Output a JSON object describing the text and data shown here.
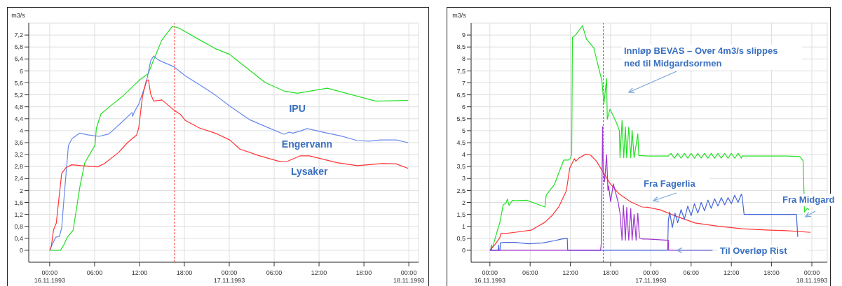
{
  "chart_data": [
    {
      "type": "line",
      "ylabel": "m3/s",
      "xlim": [
        "1993-11-15T21:12",
        "1993-11-18T01:18"
      ],
      "ylim": [
        -0.4,
        7.6
      ],
      "grid": true,
      "marker": "none",
      "xticks": [
        {
          "value": "1993-11-16T00:00",
          "label": "00:00\n16.11.1993"
        },
        {
          "value": "1993-11-16T06:00",
          "label": "06:00"
        },
        {
          "value": "1993-11-16T12:00",
          "label": "12:00"
        },
        {
          "value": "1993-11-16T18:00",
          "label": "18:00"
        },
        {
          "value": "1993-11-17T00:00",
          "label": "00:00\n17.11.1993"
        },
        {
          "value": "1993-11-17T06:00",
          "label": "06:00"
        },
        {
          "value": "1993-11-17T12:00",
          "label": "12:00"
        },
        {
          "value": "1993-11-17T18:00",
          "label": "18:00"
        },
        {
          "value": "1993-11-18T00:00",
          "label": "00:00\n18.11.1993"
        }
      ],
      "yticks": [
        0,
        {
          "value": 0.4,
          "label": "0,4"
        },
        {
          "value": 0.8,
          "label": "0,8"
        },
        {
          "value": 1.2,
          "label": "1,2"
        },
        {
          "value": 1.6,
          "label": "1,6"
        },
        2,
        {
          "value": 2.4,
          "label": "2,4"
        },
        {
          "value": 2.8,
          "label": "2,8"
        },
        {
          "value": 3.2,
          "label": "3,2"
        },
        {
          "value": 3.6,
          "label": "3,6"
        },
        4,
        {
          "value": 4.4,
          "label": "4,4"
        },
        {
          "value": 4.8,
          "label": "4,8"
        },
        {
          "value": 5.2,
          "label": "5,2"
        },
        {
          "value": 5.6,
          "label": "5,6"
        },
        6,
        {
          "value": 6.4,
          "label": "6,4"
        },
        {
          "value": 6.8,
          "label": "6,8"
        },
        {
          "value": 7.2,
          "label": "7,2"
        }
      ],
      "ref_lines": [
        {
          "axis": "x",
          "value": "1993-11-16T16:42",
          "color": "#ff3333",
          "line_style": "dotted"
        }
      ],
      "series": [
        {
          "name": "IPU",
          "color": "#22e022",
          "x": [
            "1993-11-16T00:00",
            "1993-11-16T01:27",
            "1993-11-16T01:54",
            "1993-11-16T02:22",
            "1993-11-16T03:08",
            "1993-11-16T04:04",
            "1993-11-16T04:41",
            "1993-11-16T06:04",
            "1993-11-16T06:14",
            "1993-11-16T06:51",
            "1993-11-16T07:56",
            "1993-11-16T09:47",
            "1993-11-16T11:56",
            "1993-11-16T13:10",
            "1993-11-16T13:54",
            "1993-11-16T14:59",
            "1993-11-16T16:24",
            "1993-11-16T17:18",
            "1993-11-16T19:36",
            "1993-11-16T22:06",
            "1993-11-17T00:04",
            "1993-11-17T00:48",
            "1993-11-17T04:48",
            "1993-11-17T07:18",
            "1993-11-17T09:06",
            "1993-11-17T13:06",
            "1993-11-17T18:06",
            "1993-11-17T19:36",
            "1993-11-17T23:54"
          ],
          "values": [
            0,
            0,
            0.19,
            0.44,
            0.67,
            2.17,
            2.92,
            3.52,
            4.08,
            4.56,
            4.79,
            5.16,
            5.68,
            5.91,
            6.37,
            7.03,
            7.49,
            7.43,
            7.1,
            6.75,
            6.55,
            6.4,
            5.61,
            5.33,
            5.25,
            5.42,
            5.09,
            4.99,
            5.01
          ]
        },
        {
          "name": "Engervann",
          "color": "#6688ee",
          "x": [
            "1993-11-16T00:00",
            "1993-11-16T00:22",
            "1993-11-16T00:50",
            "1993-11-16T01:17",
            "1993-11-16T01:36",
            "1993-11-16T01:54",
            "1993-11-16T02:12",
            "1993-11-16T02:30",
            "1993-11-16T02:58",
            "1993-11-16T04:00",
            "1993-11-16T05:06",
            "1993-11-16T06:36",
            "1993-11-16T07:54",
            "1993-11-16T09:48",
            "1993-11-16T11:00",
            "1993-11-16T11:06",
            "1993-11-16T11:18",
            "1993-11-16T11:54",
            "1993-11-16T12:54",
            "1993-11-16T13:30",
            "1993-11-16T13:54",
            "1993-11-16T14:30",
            "1993-11-16T15:00",
            "1993-11-16T16:36",
            "1993-11-16T18:06",
            "1993-11-16T20:00",
            "1993-11-16T22:06",
            "1993-11-17T00:04",
            "1993-11-17T02:42",
            "1993-11-17T05:30",
            "1993-11-17T07:18",
            "1993-11-17T08:00",
            "1993-11-17T08:30",
            "1993-11-17T09:30",
            "1993-11-17T10:24",
            "1993-11-17T13:06",
            "1993-11-17T15:00",
            "1993-11-17T17:06",
            "1993-11-17T18:42",
            "1993-11-17T20:12",
            "1993-11-17T22:18",
            "1993-11-17T23:54"
          ],
          "values": [
            0,
            0.21,
            0.44,
            0.46,
            0.74,
            1.7,
            2.6,
            3.5,
            3.73,
            3.92,
            3.86,
            3.81,
            3.89,
            4.32,
            4.61,
            4.48,
            4.62,
            4.89,
            5.6,
            6.34,
            6.5,
            6.37,
            6.31,
            6.14,
            5.84,
            5.54,
            5.2,
            4.82,
            4.37,
            4.07,
            3.88,
            3.95,
            3.92,
            3.99,
            4.07,
            3.92,
            3.82,
            3.67,
            3.65,
            3.69,
            3.69,
            3.6
          ]
        },
        {
          "name": "Lysaker",
          "color": "#ff3333",
          "x": [
            "1993-11-16T00:00",
            "1993-11-16T00:13",
            "1993-11-16T00:31",
            "1993-11-16T00:53",
            "1993-11-16T01:17",
            "1993-11-16T01:36",
            "1993-11-16T02:12",
            "1993-11-16T02:58",
            "1993-11-16T04:12",
            "1993-11-16T06:24",
            "1993-11-16T07:18",
            "1993-11-16T09:12",
            "1993-11-16T10:24",
            "1993-11-16T11:36",
            "1993-11-16T11:54",
            "1993-11-16T12:24",
            "1993-11-16T12:54",
            "1993-11-16T13:12",
            "1993-11-16T13:30",
            "1993-11-16T13:54",
            "1993-11-16T15:00",
            "1993-11-16T16:36",
            "1993-11-16T17:30",
            "1993-11-16T18:06",
            "1993-11-16T20:00",
            "1993-11-16T22:06",
            "1993-11-17T00:04",
            "1993-11-17T01:24",
            "1993-11-17T03:54",
            "1993-11-17T06:42",
            "1993-11-17T07:48",
            "1993-11-17T09:30",
            "1993-11-17T10:42",
            "1993-11-17T14:24",
            "1993-11-17T17:06",
            "1993-11-17T20:30",
            "1993-11-17T22:18",
            "1993-11-17T23:54"
          ],
          "values": [
            0,
            0.13,
            0.69,
            0.91,
            1.85,
            2.57,
            2.77,
            2.86,
            2.83,
            2.79,
            2.9,
            3.27,
            3.6,
            3.85,
            4.09,
            5.14,
            5.67,
            5.7,
            5.22,
            4.99,
            5.03,
            4.69,
            4.54,
            4.35,
            4.09,
            3.92,
            3.69,
            3.39,
            3.17,
            2.97,
            2.98,
            3.16,
            3.16,
            2.93,
            2.83,
            2.9,
            2.89,
            2.74
          ]
        }
      ]
    },
    {
      "type": "line",
      "ylabel": "m3/s",
      "xlim": [
        "1993-11-15T21:12",
        "1993-11-18T02:18"
      ],
      "ylim": [
        -0.5,
        9.5
      ],
      "grid": true,
      "marker": "none",
      "xticks": [
        {
          "value": "1993-11-16T00:00",
          "label": "00:00\n16.11.1993"
        },
        {
          "value": "1993-11-16T06:00",
          "label": "06:00"
        },
        {
          "value": "1993-11-16T12:00",
          "label": "12:00"
        },
        {
          "value": "1993-11-16T18:00",
          "label": "18:00"
        },
        {
          "value": "1993-11-17T00:00",
          "label": "00:00\n17.11.1993"
        },
        {
          "value": "1993-11-17T06:00",
          "label": "06:00"
        },
        {
          "value": "1993-11-17T12:00",
          "label": "12:00"
        },
        {
          "value": "1993-11-17T18:00",
          "label": "18:00"
        },
        {
          "value": "1993-11-18T00:00",
          "label": "00:00\n18.11.1993"
        }
      ],
      "yticks": [
        0,
        {
          "value": 0.5,
          "label": "0,5"
        },
        1,
        {
          "value": 1.5,
          "label": "1,5"
        },
        2,
        {
          "value": 2.5,
          "label": "2,5"
        },
        3,
        {
          "value": 3.5,
          "label": "3,5"
        },
        4,
        {
          "value": 4.5,
          "label": "4,5"
        },
        5,
        {
          "value": 5.5,
          "label": "5,5"
        },
        6,
        {
          "value": 6.5,
          "label": "6,5"
        },
        7,
        {
          "value": 7.5,
          "label": "7,5"
        },
        8,
        {
          "value": 8.5,
          "label": "8,5"
        },
        9
      ],
      "ref_lines": [
        {
          "axis": "x",
          "value": "1993-11-16T16:54",
          "color": "#ff3333",
          "line_style": "dotted"
        }
      ],
      "annotations": [
        "Innløp BEVAS – Over 4m3/s slippes ned til Midgardsormen",
        "Fra Fagerlia",
        "Fra Midgard",
        {
          "text": "Til Overløp Rist",
          "x": "1993-11-17T03:54",
          "y": 0
        }
      ],
      "series": [
        {
          "color": "#22e022",
          "x": [
            "1993-11-16T00:00",
            "1993-11-16T00:25",
            "1993-11-16T01:17",
            "1993-11-16T01:28",
            "1993-11-16T01:59",
            "1993-11-16T02:24",
            "1993-11-16T02:36",
            "1993-11-16T02:51",
            "1993-11-16T03:22",
            "1993-11-16T03:43",
            "1993-11-16T05:27",
            "1993-11-16T08:12",
            "1993-11-16T08:24",
            "1993-11-16T09:36",
            "1993-11-16T11:00",
            "1993-11-16T11:42",
            "1993-11-16T12:03",
            "1993-11-16T12:12",
            "1993-11-16T12:18",
            "1993-11-16T12:45",
            "1993-11-16T13:48",
            "1993-11-16T14:24",
            "1993-11-16T15:30",
            "1993-11-16T16:12",
            "1993-11-16T16:42",
            "1993-11-16T17:00",
            "1993-11-16T17:24",
            "1993-11-16T17:30",
            "1993-11-16T17:54",
            "1993-11-16T18:48",
            "1993-11-16T19:18",
            "1993-11-16T19:24",
            "1993-11-16T19:42",
            "1993-11-16T19:57",
            "1993-11-16T20:12",
            "1993-11-16T20:24",
            "1993-11-16T20:42",
            "1993-11-16T21:00",
            "1993-11-16T21:12",
            "1993-11-16T21:30",
            "1993-11-16T22:03",
            "1993-11-16T22:12",
            "1993-11-16T23:30",
            "1993-11-17T02:36",
            "1993-11-17T03:00",
            "1993-11-17T03:30",
            "1993-11-17T04:00",
            "1993-11-17T04:30",
            "1993-11-17T05:00",
            "1993-11-17T05:30",
            "1993-11-17T06:00",
            "1993-11-17T06:30",
            "1993-11-17T07:00",
            "1993-11-17T07:30",
            "1993-11-17T08:00",
            "1993-11-17T08:30",
            "1993-11-17T09:00",
            "1993-11-17T09:30",
            "1993-11-17T10:00",
            "1993-11-17T10:30",
            "1993-11-17T11:00",
            "1993-11-17T11:30",
            "1993-11-17T12:00",
            "1993-11-17T12:30",
            "1993-11-17T13:00",
            "1993-11-17T13:30",
            "1993-11-17T13:36",
            "1993-11-17T20:12",
            "1993-11-17T22:12",
            "1993-11-17T22:42",
            "1993-11-17T22:48",
            "1993-11-17T22:54",
            "1993-11-17T23:18",
            "1993-11-17T23:36"
          ],
          "values": [
            0,
            0.14,
            0.99,
            1.13,
            1.9,
            1.98,
            2.14,
            1.88,
            2.09,
            2.07,
            2.09,
            1.81,
            2.31,
            2.74,
            3.77,
            3.77,
            3.86,
            4.04,
            8.9,
            8.99,
            9.39,
            8.83,
            8.45,
            7.65,
            7.08,
            6.14,
            7.18,
            5.48,
            5.9,
            5.38,
            5.01,
            3.87,
            5.43,
            3.87,
            5.15,
            3.87,
            5.15,
            3.87,
            5.01,
            3.87,
            4.87,
            3.96,
            3.94,
            3.94,
            4.05,
            3.85,
            4.05,
            3.85,
            4.05,
            3.85,
            4.05,
            3.85,
            4.05,
            3.85,
            4.05,
            3.85,
            4.05,
            3.85,
            4.05,
            3.85,
            4.05,
            3.85,
            4.05,
            3.85,
            4.05,
            3.85,
            3.94,
            3.94,
            3.92,
            3.74,
            2.71,
            1.6,
            1.75,
            1.7
          ]
        },
        {
          "color": "#ff3333",
          "x": [
            "1993-11-16T00:00",
            "1993-11-16T00:46",
            "1993-11-16T01:28",
            "1993-11-16T01:38",
            "1993-11-16T02:20",
            "1993-11-16T03:43",
            "1993-11-16T06:09",
            "1993-11-16T08:12",
            "1993-11-16T09:18",
            "1993-11-16T10:18",
            "1993-11-16T11:24",
            "1993-11-16T11:54",
            "1993-11-16T12:24",
            "1993-11-16T12:36",
            "1993-11-16T12:48",
            "1993-11-16T13:18",
            "1993-11-16T14:18",
            "1993-11-16T15:00",
            "1993-11-16T15:54",
            "1993-11-16T16:54",
            "1993-11-16T17:57",
            "1993-11-16T19:18",
            "1993-11-16T21:00",
            "1993-11-16T22:42",
            "1993-11-16T23:30",
            "1993-11-17T01:24",
            "1993-11-17T03:48",
            "1993-11-17T06:36",
            "1993-11-17T10:06",
            "1993-11-17T13:36",
            "1993-11-17T17:06",
            "1993-11-17T20:12",
            "1993-11-17T23:48"
          ],
          "values": [
            0,
            0.24,
            0.52,
            0.7,
            0.7,
            0.75,
            0.84,
            1.17,
            1.46,
            1.83,
            2.49,
            3.43,
            3.72,
            3.83,
            3.72,
            3.86,
            4.02,
            3.98,
            3.72,
            3.25,
            2.78,
            2.35,
            2.02,
            1.81,
            1.8,
            1.69,
            1.42,
            1.14,
            1.0,
            0.9,
            0.85,
            0.82,
            0.75
          ]
        },
        {
          "color": "#4466dd",
          "x": [
            "1993-11-16T00:00",
            "1993-11-16T00:09",
            "1993-11-16T00:12",
            "1993-11-16T00:15",
            "1993-11-16T01:15",
            "1993-11-16T01:18",
            "1993-11-16T01:21",
            "1993-11-16T01:30",
            "1993-11-16T01:33",
            "1993-11-16T02:10",
            "1993-11-16T03:43",
            "1993-11-16T05:48",
            "1993-11-16T07:54",
            "1993-11-16T09:36",
            "1993-11-16T10:40",
            "1993-11-16T11:32",
            "1993-11-16T11:36",
            "1993-11-17T02:30",
            "1993-11-17T02:36",
            "1993-11-17T02:48",
            "1993-11-17T03:12",
            "1993-11-17T03:36",
            "1993-11-17T04:00",
            "1993-11-17T04:30",
            "1993-11-17T05:00",
            "1993-11-17T05:30",
            "1993-11-17T06:00",
            "1993-11-17T06:30",
            "1993-11-17T07:00",
            "1993-11-17T07:30",
            "1993-11-17T08:00",
            "1993-11-17T08:30",
            "1993-11-17T09:00",
            "1993-11-17T09:30",
            "1993-11-17T10:00",
            "1993-11-17T10:30",
            "1993-11-17T11:00",
            "1993-11-17T11:30",
            "1993-11-17T12:00",
            "1993-11-17T12:30",
            "1993-11-17T13:00",
            "1993-11-17T13:30",
            "1993-11-17T13:36",
            "1993-11-17T13:54",
            "1993-11-17T21:42",
            "1993-11-17T21:54"
          ],
          "values": [
            0,
            0,
            0.22,
            0,
            0,
            0.22,
            0,
            0,
            0.31,
            0.33,
            0.33,
            0.27,
            0.31,
            0.4,
            0.47,
            0.5,
            0,
            0,
            1.22,
            1.6,
            0.95,
            1.55,
            1.15,
            1.7,
            1.3,
            1.85,
            1.45,
            1.95,
            1.55,
            2.0,
            1.65,
            2.1,
            1.75,
            2.15,
            1.85,
            2.2,
            1.9,
            2.2,
            1.95,
            2.3,
            2.0,
            2.35,
            2.25,
            1.5,
            1.5,
            0.56
          ]
        },
        {
          "color": "#a035d0",
          "x": [
            "1993-11-16T00:00",
            "1993-11-16T16:30",
            "1993-11-16T16:36",
            "1993-11-16T16:48",
            "1993-11-16T16:54",
            "1993-11-16T17:06",
            "1993-11-16T17:24",
            "1993-11-16T17:36",
            "1993-11-16T17:42",
            "1993-11-16T18:00",
            "1993-11-16T18:24",
            "1993-11-16T19:06",
            "1993-11-16T19:24",
            "1993-11-16T19:42",
            "1993-11-16T19:54",
            "1993-11-16T20:12",
            "1993-11-16T20:24",
            "1993-11-16T20:42",
            "1993-11-16T21:00",
            "1993-11-16T21:12",
            "1993-11-16T21:30",
            "1993-11-16T21:48",
            "1993-11-16T22:03",
            "1993-11-16T22:18",
            "1993-11-16T22:48",
            "1993-11-16T23:30",
            "1993-11-17T02:36",
            "1993-11-17T02:39",
            "1993-11-17T09:06"
          ],
          "values": [
            0,
            0,
            0.28,
            5.17,
            3.3,
            2.87,
            4.0,
            2.5,
            2.69,
            2.03,
            2.78,
            2.03,
            1.55,
            0.42,
            1.88,
            0.42,
            1.79,
            0.42,
            1.74,
            0.42,
            1.5,
            0.42,
            1.55,
            0.51,
            0.47,
            0.47,
            0.42,
            0,
            0
          ]
        }
      ]
    }
  ]
}
